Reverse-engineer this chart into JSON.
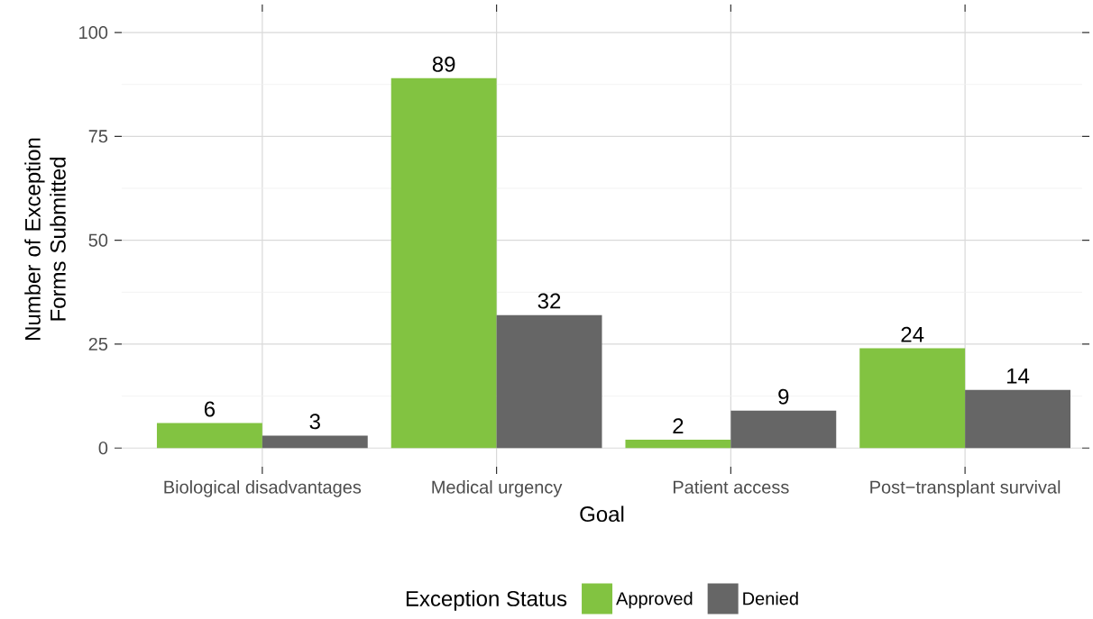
{
  "chart_data": {
    "type": "bar",
    "xlabel": "Goal",
    "ylabel": "Number of Exception Forms Submitted",
    "legend_title": "Exception Status",
    "categories": [
      "Biological disadvantages",
      "Medical urgency",
      "Patient access",
      "Post−transplant survival"
    ],
    "series": [
      {
        "name": "Approved",
        "color": "#82c341",
        "values": [
          6,
          89,
          2,
          24
        ]
      },
      {
        "name": "Denied",
        "color": "#666666",
        "values": [
          3,
          32,
          9,
          14
        ]
      }
    ],
    "ylim": [
      -4.5,
      105
    ],
    "yticks": [
      0,
      25,
      50,
      75,
      100
    ],
    "grid": true,
    "legend": "bottom",
    "data_labels": true
  }
}
